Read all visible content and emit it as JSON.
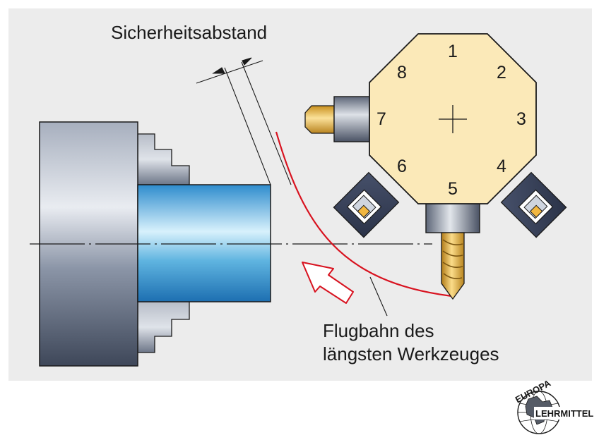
{
  "labels": {
    "safety_distance": "Sicherheitsabstand",
    "trajectory_line1": "Flugbahn des",
    "trajectory_line2": "längsten Werkzeuges"
  },
  "turret_positions": [
    "1",
    "2",
    "3",
    "4",
    "5",
    "6",
    "7",
    "8"
  ],
  "logo": {
    "top_text": "EUROPA",
    "bottom_text": "LEHRMITTEL"
  },
  "colors": {
    "panel_background": "#ececec",
    "turret_body": "#fbe9b8",
    "chuck_gray": "#8a94a6",
    "workpiece_blue": "#5fb4e0",
    "trajectory_red": "#d8121f",
    "drill_gold": "#e7b850"
  }
}
